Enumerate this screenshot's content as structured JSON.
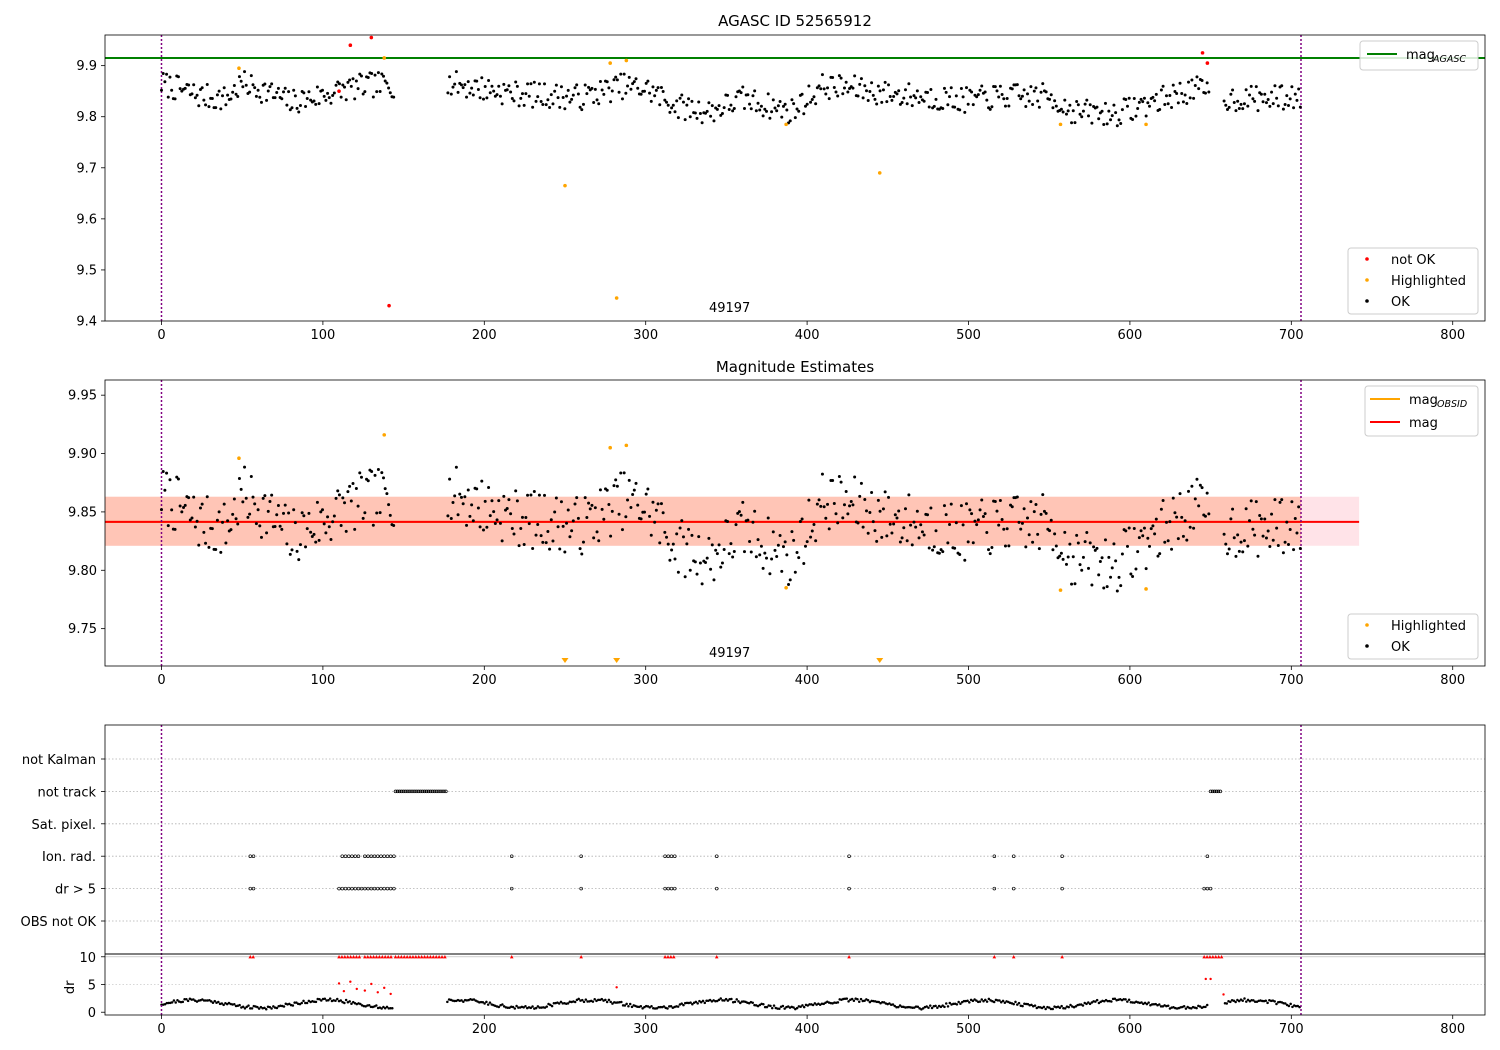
{
  "colors": {
    "ok": "#000000",
    "highlighted": "#ffa500",
    "not_ok": "#ff0000",
    "agasc_line": "#008000",
    "obsid_line": "#ffa500",
    "mag_line": "#ff0000",
    "obsid_band": "#ffa07a",
    "mag_band": "#ffc0cb",
    "vline": "#800080",
    "grid": "#b0b0b0"
  },
  "chart_data": [
    {
      "type": "scatter",
      "title": "AGASC ID 52565912",
      "annotation": "49197",
      "xlim": [
        -35,
        820
      ],
      "ylim": [
        9.4,
        9.96
      ],
      "xticks": [
        0,
        100,
        200,
        300,
        400,
        500,
        600,
        700,
        800
      ],
      "xtick_labels": [
        "0",
        "100",
        "200",
        "300",
        "400",
        "500",
        "600",
        "700",
        "800"
      ],
      "yticks": [
        9.4,
        9.5,
        9.6,
        9.7,
        9.8,
        9.9
      ],
      "ytick_labels": [
        "9.4",
        "9.5",
        "9.6",
        "9.7",
        "9.8",
        "9.9"
      ],
      "vlines": [
        0,
        706
      ],
      "hlines": [
        {
          "name": "mag_AGASC",
          "y": 9.915,
          "color": "#008000"
        }
      ],
      "legend_upper": {
        "position": "upper right",
        "entries": [
          {
            "label": "mag",
            "sub": "AGASC",
            "kind": "line",
            "color": "#008000"
          }
        ]
      },
      "legend_lower": {
        "position": "lower right",
        "entries": [
          {
            "label": "not OK",
            "kind": "dot",
            "color": "#ff0000"
          },
          {
            "label": "Highlighted",
            "kind": "dot",
            "color": "#ffa500"
          },
          {
            "label": "OK",
            "kind": "dot",
            "color": "#000000"
          }
        ]
      },
      "series": [
        {
          "name": "not OK",
          "color": "#ff0000",
          "points": [
            [
              117,
              9.94
            ],
            [
              130,
              9.955
            ],
            [
              110,
              9.85
            ],
            [
              141,
              9.43
            ],
            [
              645,
              9.925
            ],
            [
              648,
              9.905
            ]
          ]
        },
        {
          "name": "Highlighted",
          "color": "#ffa500",
          "points": [
            [
              48,
              9.895
            ],
            [
              138,
              9.915
            ],
            [
              250,
              9.665
            ],
            [
              278,
              9.905
            ],
            [
              282,
              9.445
            ],
            [
              288,
              9.91
            ],
            [
              387,
              9.785
            ],
            [
              445,
              9.69
            ],
            [
              557,
              9.785
            ],
            [
              610,
              9.785
            ]
          ]
        },
        {
          "name": "OK",
          "color": "#000000",
          "generated": true
        }
      ]
    },
    {
      "type": "scatter",
      "title": "Magnitude Estimates",
      "annotation": "49197",
      "xlim": [
        -35,
        820
      ],
      "ylim": [
        9.718,
        9.963
      ],
      "xticks": [
        0,
        100,
        200,
        300,
        400,
        500,
        600,
        700,
        800
      ],
      "xtick_labels": [
        "0",
        "100",
        "200",
        "300",
        "400",
        "500",
        "600",
        "700",
        "800"
      ],
      "yticks": [
        9.75,
        9.8,
        9.85,
        9.9,
        9.95
      ],
      "ytick_labels": [
        "9.75",
        "9.80",
        "9.85",
        "9.90",
        "9.95"
      ],
      "vlines": [
        0,
        706
      ],
      "bands": [
        {
          "name": "mag range",
          "ymin": 9.821,
          "ymax": 9.863,
          "xmin": -35,
          "xmax": 742,
          "color": "#ffc0cb"
        },
        {
          "name": "mag_OBSID range",
          "ymin": 9.821,
          "ymax": 9.863,
          "xmin": -35,
          "xmax": 706,
          "color": "#ffa07a"
        }
      ],
      "hlines": [
        {
          "name": "mag_OBSID",
          "y": 9.8415,
          "xmin": -35,
          "xmax": 706,
          "color": "#ffa500"
        },
        {
          "name": "mag",
          "y": 9.8415,
          "xmin": -35,
          "xmax": 742,
          "color": "#ff0000"
        }
      ],
      "legend_upper": {
        "position": "upper right",
        "entries": [
          {
            "label": "mag",
            "sub": "OBSID",
            "kind": "line",
            "color": "#ffa500"
          },
          {
            "label": "mag",
            "sub": "",
            "kind": "line",
            "color": "#ff0000"
          }
        ]
      },
      "legend_lower": {
        "position": "lower right",
        "entries": [
          {
            "label": "Highlighted",
            "kind": "dot",
            "color": "#ffa500"
          },
          {
            "label": "OK",
            "kind": "dot",
            "color": "#000000"
          }
        ]
      },
      "series": [
        {
          "name": "Highlighted",
          "color": "#ffa500",
          "points": [
            [
              48,
              9.896
            ],
            [
              138,
              9.916
            ],
            [
              278,
              9.905
            ],
            [
              288,
              9.907
            ],
            [
              387,
              9.785
            ],
            [
              557,
              9.783
            ],
            [
              610,
              9.784
            ]
          ]
        },
        {
          "name": "Highlighted (below range)",
          "color": "#ffa500",
          "marker": "triangle-down",
          "points": [
            [
              250,
              9.72
            ],
            [
              282,
              9.72
            ],
            [
              445,
              9.72
            ]
          ]
        },
        {
          "name": "OK",
          "color": "#000000",
          "generated": true
        }
      ]
    },
    {
      "type": "scatter",
      "title": "",
      "xlim": [
        -35,
        820
      ],
      "xticks": [
        0,
        100,
        200,
        300,
        400,
        500,
        600,
        700,
        800
      ],
      "xtick_labels": [
        "0",
        "100",
        "200",
        "300",
        "400",
        "500",
        "600",
        "700",
        "800"
      ],
      "vlines": [
        0,
        706
      ],
      "flag_rows": [
        "not Kalman",
        "not track",
        "Sat. pixel.",
        "Ion. rad.",
        "dr > 5",
        "OBS not OK"
      ],
      "flags": {
        "not track": [
          [
            145,
            177
          ],
          [
            650,
            657
          ]
        ],
        "Ion. rad.": [
          [
            55,
            57
          ],
          [
            112,
            122
          ],
          [
            126,
            144
          ],
          [
            217,
            217
          ],
          [
            260,
            260
          ],
          [
            312,
            318
          ],
          [
            344,
            344
          ],
          [
            426,
            426
          ],
          [
            516,
            516
          ],
          [
            528,
            528
          ],
          [
            558,
            558
          ],
          [
            648,
            648
          ]
        ],
        "dr > 5": [
          [
            55,
            57
          ],
          [
            110,
            124
          ],
          [
            126,
            144
          ],
          [
            217,
            217
          ],
          [
            260,
            260
          ],
          [
            312,
            318
          ],
          [
            344,
            344
          ],
          [
            426,
            426
          ],
          [
            516,
            516
          ],
          [
            528,
            528
          ],
          [
            558,
            558
          ],
          [
            646,
            650
          ]
        ]
      },
      "dr_panel": {
        "ylabel": "dr",
        "yticks": [
          0,
          5,
          10
        ],
        "ytick_labels": [
          "0",
          "5",
          "10"
        ],
        "ylim": [
          -0.5,
          10.5
        ],
        "clipped_at": 10,
        "red_clipped_ranges": [
          [
            55,
            57
          ],
          [
            110,
            124
          ],
          [
            126,
            144
          ],
          [
            145,
            177
          ],
          [
            217,
            217
          ],
          [
            260,
            260
          ],
          [
            312,
            318
          ],
          [
            344,
            344
          ],
          [
            426,
            426
          ],
          [
            516,
            516
          ],
          [
            528,
            528
          ],
          [
            558,
            558
          ],
          [
            646,
            657
          ]
        ],
        "red_points": [
          [
            110,
            5.2
          ],
          [
            113,
            3.8
          ],
          [
            117,
            5.5
          ],
          [
            121,
            4.2
          ],
          [
            126,
            3.9
          ],
          [
            130,
            5.1
          ],
          [
            134,
            3.6
          ],
          [
            138,
            4.4
          ],
          [
            142,
            3.3
          ],
          [
            282,
            4.5
          ],
          [
            647,
            6.0
          ],
          [
            650,
            6.0
          ],
          [
            658,
            3.2
          ]
        ]
      }
    }
  ]
}
